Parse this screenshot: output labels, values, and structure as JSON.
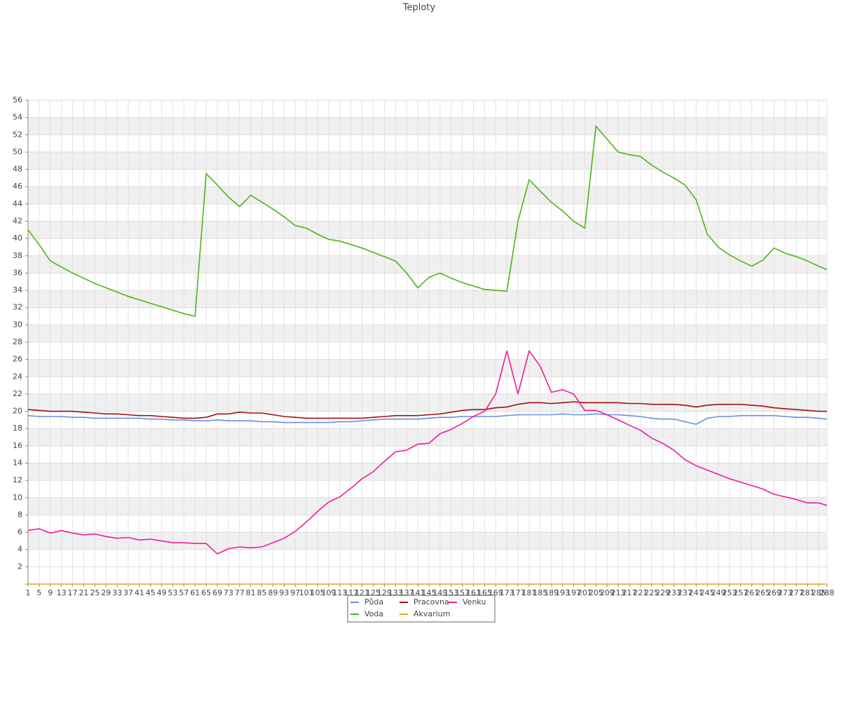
{
  "chart_data": {
    "type": "line",
    "title": "Teploty",
    "x": [
      1,
      5,
      9,
      13,
      17,
      21,
      25,
      29,
      33,
      37,
      41,
      45,
      49,
      53,
      57,
      61,
      65,
      69,
      73,
      77,
      81,
      85,
      89,
      93,
      97,
      101,
      105,
      109,
      113,
      117,
      121,
      125,
      129,
      133,
      137,
      141,
      145,
      149,
      153,
      157,
      161,
      165,
      169,
      173,
      177,
      181,
      185,
      189,
      193,
      197,
      201,
      205,
      209,
      213,
      217,
      221,
      225,
      229,
      233,
      237,
      241,
      245,
      249,
      253,
      257,
      261,
      265,
      269,
      273,
      277,
      281,
      285,
      288
    ],
    "xlim": [
      1,
      288
    ],
    "xticks": [
      1,
      5,
      9,
      13,
      17,
      21,
      25,
      29,
      33,
      37,
      41,
      45,
      49,
      53,
      57,
      61,
      65,
      69,
      73,
      77,
      81,
      85,
      89,
      93,
      97,
      101,
      105,
      109,
      113,
      117,
      121,
      125,
      129,
      133,
      137,
      141,
      145,
      149,
      153,
      157,
      161,
      165,
      169,
      173,
      177,
      181,
      185,
      189,
      193,
      197,
      201,
      205,
      209,
      213,
      217,
      221,
      225,
      229,
      233,
      237,
      241,
      245,
      249,
      253,
      257,
      261,
      265,
      269,
      273,
      277,
      281,
      285,
      288
    ],
    "ylim": [
      0,
      56
    ],
    "yticks": [
      2,
      4,
      6,
      8,
      10,
      12,
      14,
      16,
      18,
      20,
      22,
      24,
      26,
      28,
      30,
      32,
      34,
      36,
      38,
      40,
      42,
      44,
      46,
      48,
      50,
      52,
      54,
      56
    ],
    "grid": true,
    "series": [
      {
        "name": "Půda",
        "color": "#6b8fe0",
        "values": [
          19.5,
          19.4,
          19.4,
          19.4,
          19.3,
          19.3,
          19.2,
          19.2,
          19.2,
          19.2,
          19.2,
          19.1,
          19.1,
          19,
          19,
          18.9,
          18.9,
          19,
          18.9,
          18.9,
          18.9,
          18.8,
          18.8,
          18.7,
          18.7,
          18.7,
          18.7,
          18.7,
          18.8,
          18.8,
          18.9,
          19,
          19.1,
          19.1,
          19.1,
          19.1,
          19.2,
          19.3,
          19.3,
          19.4,
          19.4,
          19.4,
          19.4,
          19.5,
          19.6,
          19.6,
          19.6,
          19.6,
          19.7,
          19.6,
          19.6,
          19.7,
          19.6,
          19.6,
          19.5,
          19.4,
          19.2,
          19.1,
          19.1,
          18.8,
          18.5,
          19.2,
          19.4,
          19.4,
          19.5,
          19.5,
          19.5,
          19.5,
          19.4,
          19.3,
          19.3,
          19.2,
          19.1
        ]
      },
      {
        "name": "Pracovna",
        "color": "#a01010",
        "values": [
          20.2,
          20.1,
          20,
          20,
          20,
          19.9,
          19.8,
          19.7,
          19.7,
          19.6,
          19.5,
          19.5,
          19.4,
          19.3,
          19.2,
          19.2,
          19.3,
          19.7,
          19.7,
          19.9,
          19.8,
          19.8,
          19.6,
          19.4,
          19.3,
          19.2,
          19.2,
          19.2,
          19.2,
          19.2,
          19.2,
          19.3,
          19.4,
          19.5,
          19.5,
          19.5,
          19.6,
          19.7,
          19.9,
          20.1,
          20.2,
          20.2,
          20.4,
          20.5,
          20.8,
          21,
          21,
          20.9,
          21,
          21.1,
          21,
          21,
          21,
          21,
          20.9,
          20.9,
          20.8,
          20.8,
          20.8,
          20.7,
          20.5,
          20.7,
          20.8,
          20.8,
          20.8,
          20.7,
          20.6,
          20.4,
          20.3,
          20.2,
          20.1,
          20,
          20
        ]
      },
      {
        "name": "Venku",
        "color": "#ee1c9c",
        "values": [
          6.2,
          6.4,
          5.9,
          6.2,
          5.9,
          5.7,
          5.8,
          5.5,
          5.3,
          5.4,
          5.1,
          5.2,
          5,
          4.8,
          4.8,
          4.7,
          4.7,
          3.5,
          4.1,
          4.3,
          4.2,
          4.3,
          4.8,
          5.3,
          6.1,
          7.2,
          8.4,
          9.5,
          10.1,
          11.1,
          12.2,
          13,
          14.2,
          15.3,
          15.5,
          16.2,
          16.3,
          17.4,
          17.9,
          18.6,
          19.4,
          20,
          22,
          27,
          22,
          27,
          25.2,
          22.2,
          22.5,
          22,
          20.1,
          20.1,
          19.6,
          19,
          18.4,
          17.8,
          16.9,
          16.3,
          15.5,
          14.4,
          13.7,
          13.2,
          12.7,
          12.2,
          11.8,
          11.4,
          11,
          10.4,
          10.1,
          9.8,
          9.4,
          9.4,
          9.1
        ]
      },
      {
        "name": "Voda",
        "color": "#4bb516",
        "values": [
          41,
          39.3,
          37.4,
          36.7,
          36,
          35.4,
          34.8,
          34.3,
          33.8,
          33.3,
          32.9,
          32.5,
          32.1,
          31.7,
          31.3,
          31,
          47.5,
          46.2,
          44.8,
          43.7,
          45,
          44.2,
          43.4,
          42.5,
          41.5,
          41.2,
          40.5,
          39.9,
          39.7,
          39.3,
          38.9,
          38.4,
          37.9,
          37.4,
          36,
          34.3,
          35.5,
          36,
          35.4,
          34.9,
          34.5,
          34.1,
          34,
          33.9,
          42,
          46.8,
          45.5,
          44.2,
          43.2,
          42,
          41.2,
          53,
          51.5,
          50,
          49.7,
          49.5,
          48.5,
          47.7,
          47,
          46.2,
          44.5,
          40.5,
          39,
          38.1,
          37.4,
          36.8,
          37.5,
          38.9,
          38.3,
          37.9,
          37.4,
          36.8,
          36.4
        ]
      },
      {
        "name": "Akvarium",
        "color": "#e8a317",
        "values": [
          0,
          0,
          0,
          0,
          0,
          0,
          0,
          0,
          0,
          0,
          0,
          0,
          0,
          0,
          0,
          0,
          0,
          0,
          0,
          0,
          0,
          0,
          0,
          0,
          0,
          0,
          0,
          0,
          0,
          0,
          0,
          0,
          0,
          0,
          0,
          0,
          0,
          0,
          0,
          0,
          0,
          0,
          0,
          0,
          0,
          0,
          0,
          0,
          0,
          0,
          0,
          0,
          0,
          0,
          0,
          0,
          0,
          0,
          0,
          0,
          0,
          0,
          0,
          0,
          0,
          0,
          0,
          0,
          0,
          0,
          0,
          0,
          0
        ]
      }
    ]
  }
}
